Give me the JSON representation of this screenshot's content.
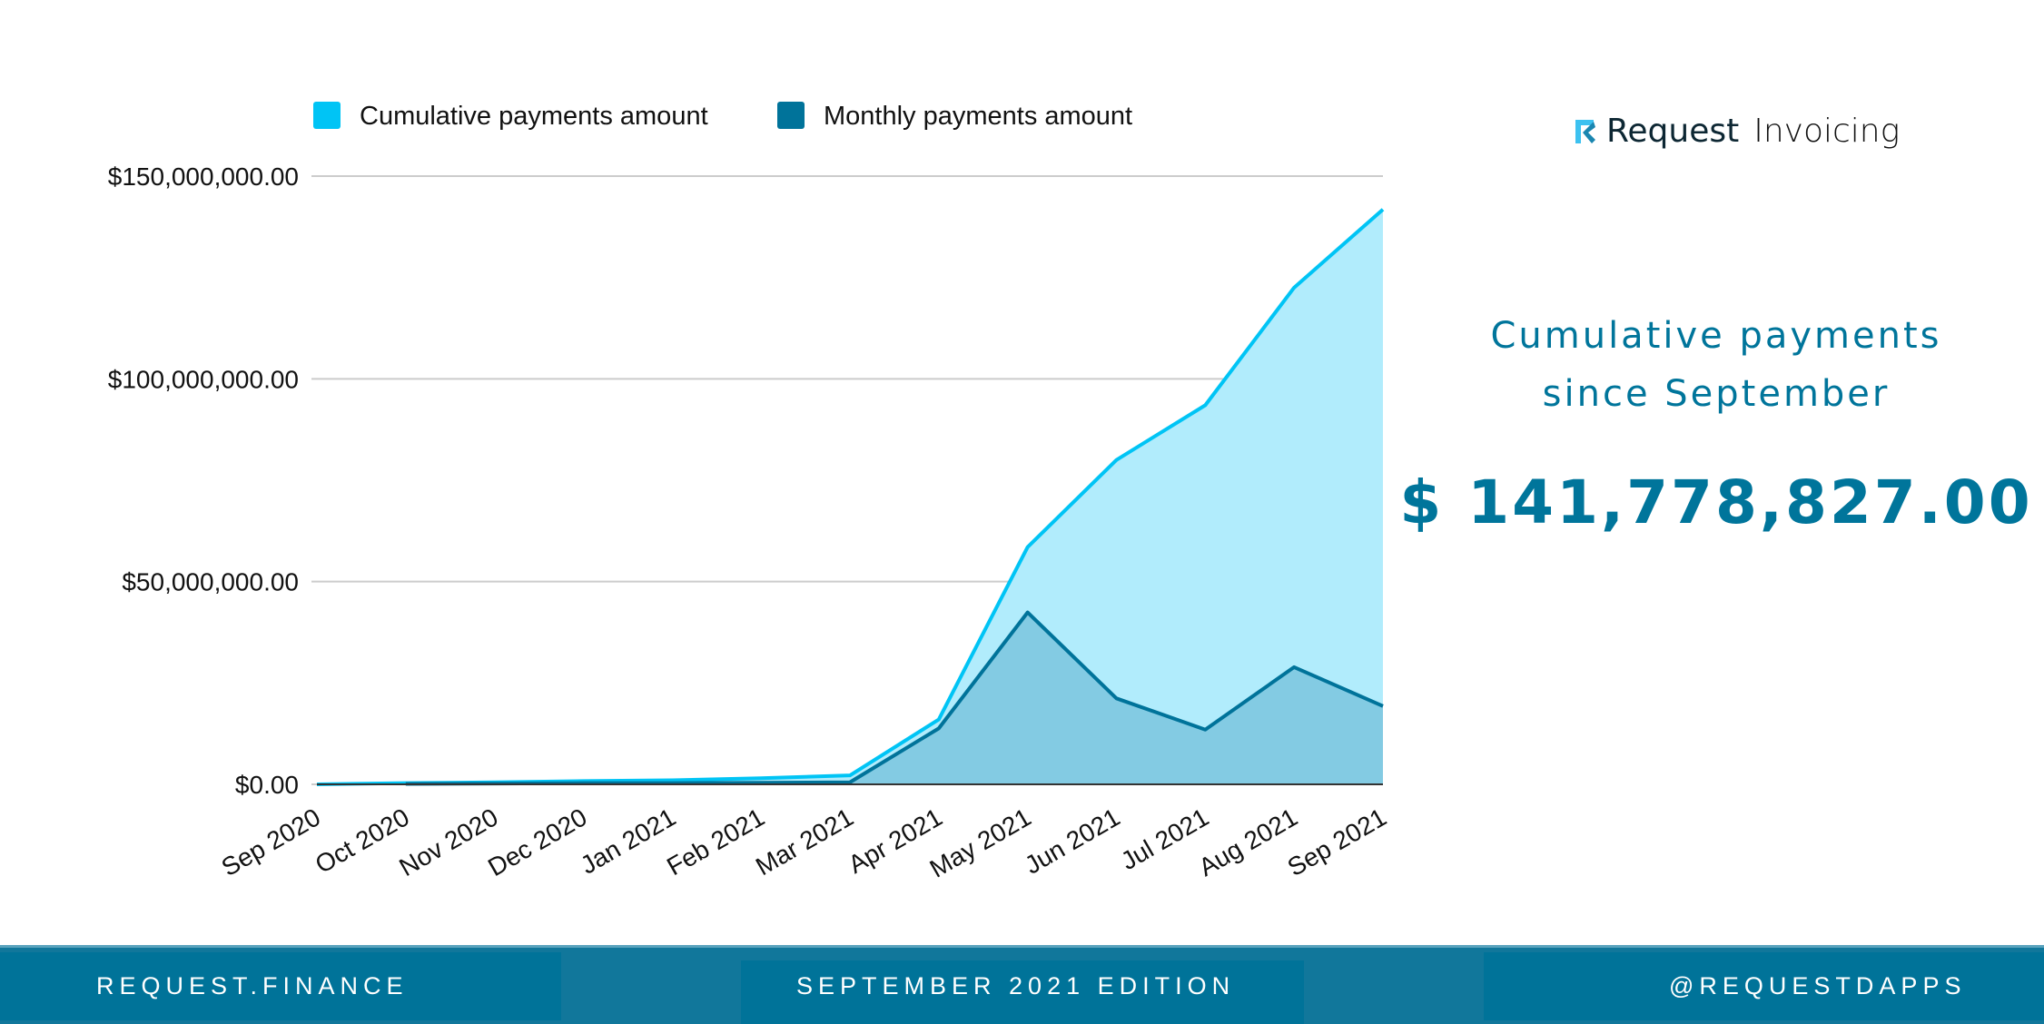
{
  "chart_data": {
    "type": "area",
    "title": "",
    "xlabel": "",
    "ylabel": "",
    "categories": [
      "Sep 2020",
      "Oct 2020",
      "Nov 2020",
      "Dec 2020",
      "Jan 2021",
      "Feb 2021",
      "Mar 2021",
      "Apr 2021",
      "May 2021",
      "Jun 2021",
      "Jul 2021",
      "Aug 2021",
      "Sep 2021"
    ],
    "series": [
      {
        "name": "Cumulative payments amount",
        "color": "#00c4f5",
        "fill": "#b1ecfc",
        "values": [
          0,
          300000,
          500000,
          800000,
          1000000,
          1500000,
          2200000,
          16000000,
          58500000,
          80000000,
          93500000,
          122500000,
          141778827
        ]
      },
      {
        "name": "Monthly payments amount",
        "color": "#00739a",
        "fill": "#7ec8e0",
        "values": [
          null,
          100000,
          200000,
          300000,
          300000,
          400000,
          500000,
          13800000,
          42400000,
          21200000,
          13500000,
          28900000,
          19300000
        ]
      }
    ],
    "ylim": [
      0,
      150000000
    ],
    "yticks": [
      0,
      50000000,
      100000000,
      150000000
    ],
    "ytick_labels": [
      "$0.00",
      "$50,000,000.00",
      "$100,000,000.00",
      "$150,000,000.00"
    ],
    "grid": true,
    "legend_position": "top"
  },
  "logo": {
    "brand": "Request",
    "product": "Invoicing"
  },
  "headline": {
    "line1": "Cumulative payments",
    "line2": "since September"
  },
  "amount": "$ 141,778,827.00",
  "footer": {
    "left": "REQUEST.FINANCE",
    "center": "SEPTEMBER 2021 EDITION",
    "right": "@REQUESTDAPPS"
  }
}
